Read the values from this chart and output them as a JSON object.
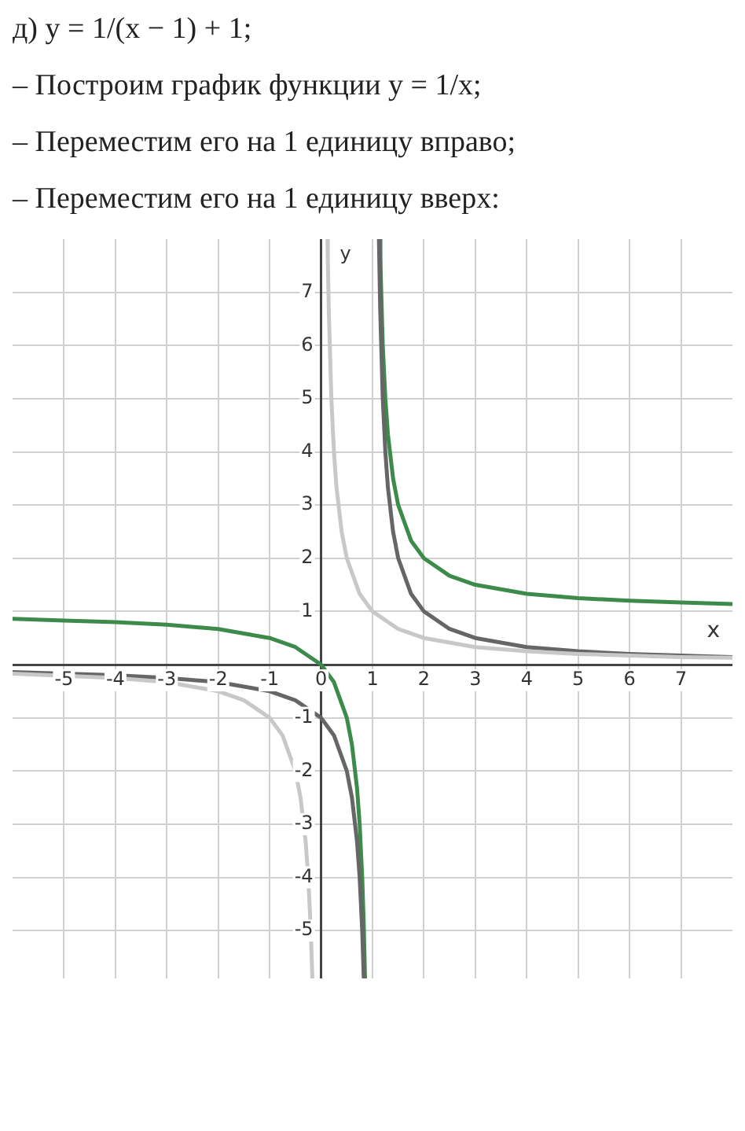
{
  "chart_data": {
    "type": "line",
    "title": "д) y = 1/(x − 1) + 1;",
    "annotations": [
      "– Построим график функции y = 1/x;",
      "– Переместим его на 1 единицу вправо;",
      "– Переместим его на 1 единицу вверх:"
    ],
    "xlabel": "x",
    "ylabel": "y",
    "xlim": [
      -6,
      8
    ],
    "ylim": [
      -5.9,
      8
    ],
    "xticks": [
      -5,
      -4,
      -3,
      -2,
      -1,
      0,
      1,
      2,
      3,
      4,
      5,
      6,
      7
    ],
    "yticks": [
      -5,
      -4,
      -3,
      -2,
      -1,
      1,
      2,
      3,
      4,
      5,
      6,
      7
    ],
    "grid": true,
    "legend": false,
    "marker": "none",
    "line_style": "solid",
    "series": [
      {
        "color": "#c8c8c8",
        "x": [
          -6,
          -4,
          -3,
          -2,
          -1.5,
          -1,
          -0.75,
          -0.5,
          -0.4,
          -0.3,
          -0.25,
          -0.2,
          -0.17,
          0,
          0.125,
          0.13,
          0.15,
          0.2,
          0.25,
          0.3,
          0.4,
          0.5,
          0.75,
          1,
          1.5,
          2,
          3,
          4,
          5,
          6,
          7,
          8
        ],
        "values": [
          -0.17,
          -0.25,
          -0.33,
          -0.5,
          -0.67,
          -1,
          -1.33,
          -2,
          -2.5,
          -3.33,
          -4,
          -5,
          -5.88,
          null,
          8,
          7.69,
          6.67,
          5,
          4,
          3.33,
          2.5,
          2,
          1.33,
          1,
          0.67,
          0.5,
          0.33,
          0.25,
          0.2,
          0.17,
          0.14,
          0.13
        ]
      },
      {
        "color": "#666666",
        "x": [
          -6,
          -4,
          -3,
          -2,
          -1,
          -0.5,
          0,
          0.25,
          0.5,
          0.6,
          0.7,
          0.75,
          0.8,
          0.83,
          1,
          1.125,
          1.15,
          1.2,
          1.25,
          1.3,
          1.4,
          1.5,
          1.75,
          2,
          2.5,
          3,
          4,
          5,
          6,
          7,
          8
        ],
        "values": [
          -0.14,
          -0.2,
          -0.25,
          -0.33,
          -0.5,
          -0.67,
          -1,
          -1.33,
          -2,
          -2.5,
          -3.33,
          -4,
          -5,
          -5.88,
          null,
          8,
          6.67,
          5,
          4,
          3.33,
          2.5,
          2,
          1.33,
          1,
          0.67,
          0.5,
          0.33,
          0.25,
          0.2,
          0.17,
          0.14
        ]
      },
      {
        "color": "#3d8b4a",
        "x": [
          -6,
          -5,
          -4,
          -3,
          -2,
          -1,
          -0.5,
          0,
          0.25,
          0.5,
          0.6,
          0.7,
          0.75,
          0.8,
          0.83,
          0.855,
          1,
          1.143,
          1.15,
          1.2,
          1.25,
          1.3,
          1.4,
          1.5,
          1.75,
          2,
          2.5,
          3,
          4,
          5,
          6,
          7,
          8
        ],
        "values": [
          0.86,
          0.83,
          0.8,
          0.75,
          0.67,
          0.5,
          0.33,
          0,
          -0.33,
          -1,
          -1.5,
          -2.33,
          -3,
          -4,
          -4.88,
          -5.9,
          null,
          8,
          7.67,
          6,
          5,
          4.33,
          3.5,
          3,
          2.33,
          2,
          1.67,
          1.5,
          1.33,
          1.25,
          1.2,
          1.17,
          1.14
        ]
      }
    ]
  }
}
